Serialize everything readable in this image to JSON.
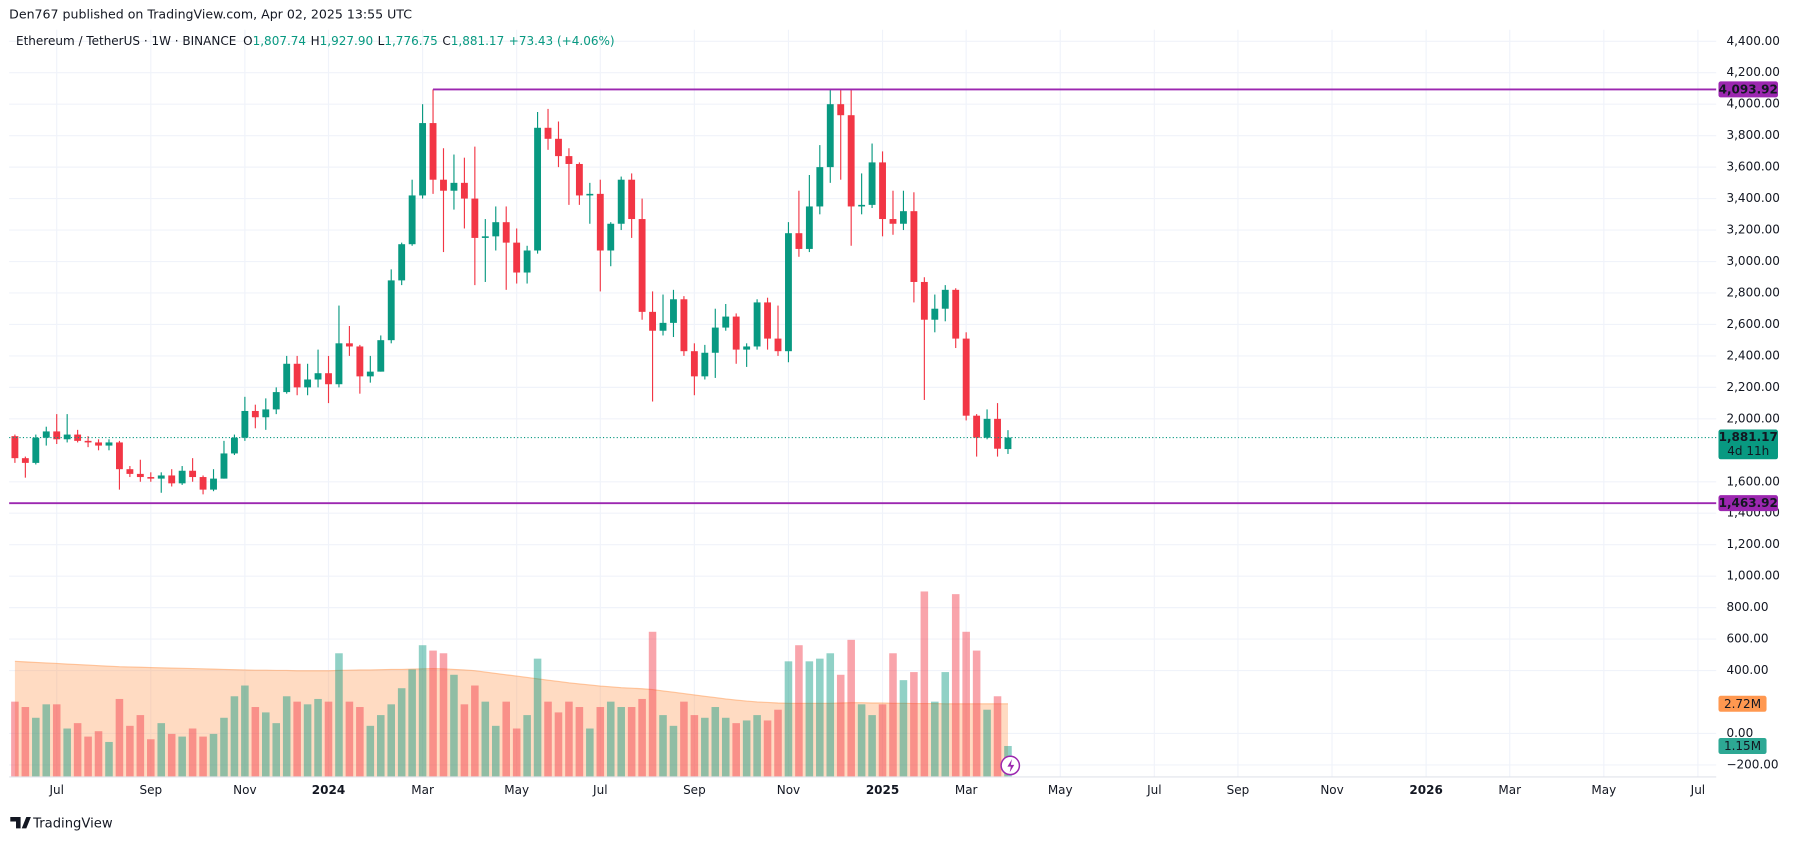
{
  "header": {
    "published": "Den767 published on TradingView.com, Apr 02, 2025 13:55 UTC",
    "brand": "TradingView"
  },
  "chart_data": {
    "type": "candlestick",
    "legend": {
      "symbol": "Ethereum / TetherUS · 1W · BINANCE",
      "items": [
        {
          "key": "O",
          "value": "1,807.74"
        },
        {
          "key": "H",
          "value": "1,927.90"
        },
        {
          "key": "L",
          "value": "1,776.75"
        },
        {
          "key": "C",
          "value": "1,881.17"
        }
      ],
      "change": "+73.43 (+4.06%)"
    },
    "colors": {
      "up": "#089981",
      "down": "#f23645",
      "level": "#9c27b0",
      "volume_ma": "#ff9850"
    },
    "open": [
      1890,
      1750,
      1720,
      1880,
      1920,
      1870,
      1900,
      1860,
      1850,
      1830,
      1850,
      1680,
      1650,
      1630,
      1620,
      1640,
      1590,
      1670,
      1630,
      1550,
      1620,
      1780,
      1880,
      2050,
      2010,
      2060,
      2170,
      2350,
      2200,
      2250,
      2290,
      2220,
      2480,
      2460,
      2270,
      2300,
      2500,
      2880,
      3110,
      3420,
      3880,
      3520,
      3450,
      3500,
      3400,
      3150,
      3160,
      3250,
      3120,
      2930,
      3070,
      3850,
      3780,
      3670,
      3620,
      3420,
      3430,
      3070,
      3240,
      3520,
      3270,
      2680,
      2560,
      2610,
      2760,
      2430,
      2270,
      2420,
      2580,
      2650,
      2440,
      2460,
      2740,
      2510,
      2430,
      3180,
      3080,
      3350,
      3600,
      4000,
      3930,
      3350,
      3360,
      3630,
      3270,
      3240,
      3320,
      2870,
      2630,
      2700,
      2820,
      2510,
      2020,
      1880,
      2000,
      1807.74
    ],
    "high": [
      1900,
      1760,
      1900,
      1950,
      2030,
      2030,
      1930,
      1890,
      1870,
      1870,
      1860,
      1700,
      1740,
      1660,
      1660,
      1680,
      1700,
      1750,
      1640,
      1680,
      1860,
      1900,
      2140,
      2090,
      2130,
      2200,
      2400,
      2400,
      2350,
      2440,
      2400,
      2720,
      2590,
      2470,
      2400,
      2530,
      2950,
      3120,
      3520,
      4000,
      4093.92,
      3720,
      3680,
      3660,
      3730,
      3270,
      3350,
      3350,
      3210,
      3100,
      3950,
      3970,
      3890,
      3720,
      3630,
      3500,
      3520,
      3250,
      3540,
      3560,
      3400,
      2810,
      2790,
      2820,
      2780,
      2480,
      2470,
      2700,
      2730,
      2670,
      2480,
      2760,
      2770,
      2720,
      3250,
      3450,
      3550,
      3740,
      4090,
      4090,
      4093.92,
      3560,
      3750,
      3700,
      3450,
      3450,
      3440,
      2900,
      2790,
      2850,
      2830,
      2550,
      2030,
      2060,
      2100,
      1927.9
    ],
    "low": [
      1720,
      1626,
      1710,
      1830,
      1840,
      1850,
      1850,
      1820,
      1800,
      1800,
      1550,
      1630,
      1600,
      1600,
      1530,
      1570,
      1580,
      1600,
      1520,
      1540,
      1620,
      1770,
      1860,
      1940,
      1930,
      2030,
      2160,
      2150,
      2150,
      2200,
      2100,
      2200,
      2400,
      2160,
      2230,
      2300,
      2480,
      2850,
      3100,
      3400,
      3430,
      3060,
      3330,
      3210,
      2850,
      2870,
      3070,
      2820,
      2860,
      2860,
      3050,
      3710,
      3600,
      3360,
      3360,
      3240,
      2810,
      2970,
      3200,
      3150,
      2630,
      2110,
      2530,
      2520,
      2400,
      2150,
      2250,
      2260,
      2560,
      2350,
      2330,
      2440,
      2440,
      2400,
      2360,
      3030,
      3060,
      3300,
      3500,
      3520,
      3100,
      3300,
      3340,
      3160,
      3170,
      3200,
      2740,
      2120,
      2550,
      2620,
      2450,
      1990,
      1760,
      1870,
      1760,
      1776.75
    ],
    "close": [
      1750,
      1720,
      1880,
      1920,
      1870,
      1900,
      1860,
      1850,
      1830,
      1850,
      1680,
      1650,
      1630,
      1620,
      1640,
      1590,
      1670,
      1630,
      1550,
      1620,
      1780,
      1880,
      2050,
      2010,
      2060,
      2170,
      2350,
      2200,
      2250,
      2290,
      2220,
      2480,
      2460,
      2270,
      2300,
      2500,
      2880,
      3110,
      3420,
      3880,
      3520,
      3450,
      3500,
      3400,
      3150,
      3160,
      3250,
      3120,
      2930,
      3070,
      3850,
      3780,
      3670,
      3620,
      3420,
      3430,
      3070,
      3240,
      3520,
      3270,
      2680,
      2560,
      2610,
      2760,
      2430,
      2270,
      2420,
      2580,
      2650,
      2440,
      2460,
      2740,
      2510,
      2430,
      3180,
      3080,
      3350,
      3600,
      4000,
      3930,
      3350,
      3360,
      3630,
      3270,
      3240,
      3320,
      2870,
      2630,
      2700,
      2820,
      2510,
      2020,
      1880,
      2000,
      1810,
      1881.17
    ],
    "volume": {
      "axis": "y2",
      "last_label": "1.15M",
      "values": [
        2.8,
        2.6,
        2.2,
        2.7,
        2.7,
        1.8,
        2.0,
        1.5,
        1.7,
        1.3,
        2.9,
        1.9,
        2.3,
        1.4,
        2.0,
        1.6,
        1.5,
        1.8,
        1.5,
        1.6,
        2.2,
        3.0,
        3.4,
        2.6,
        2.4,
        2.0,
        3.0,
        2.8,
        2.7,
        2.9,
        2.8,
        4.6,
        2.8,
        2.6,
        1.9,
        2.3,
        2.7,
        3.3,
        4.0,
        4.9,
        4.7,
        4.6,
        3.8,
        2.7,
        3.4,
        2.8,
        1.9,
        2.8,
        1.8,
        2.3,
        4.4,
        2.8,
        2.4,
        2.8,
        2.6,
        1.8,
        2.6,
        2.8,
        2.6,
        2.6,
        2.9,
        5.4,
        2.3,
        1.9,
        2.8,
        2.3,
        2.2,
        2.6,
        2.2,
        2.0,
        2.1,
        2.3,
        2.1,
        2.5,
        4.3,
        4.9,
        4.3,
        4.4,
        4.6,
        3.8,
        5.1,
        2.7,
        2.3,
        2.7,
        4.6,
        3.6,
        3.9,
        6.9,
        2.8,
        3.9,
        6.8,
        5.4,
        4.7,
        2.5,
        3.0,
        1.15
      ]
    },
    "volume_ma": {
      "axis": "y2",
      "last_label": "2.72M",
      "values": [
        4.3,
        4.28,
        4.26,
        4.24,
        4.22,
        4.2,
        4.18,
        4.16,
        4.14,
        4.12,
        4.1,
        4.09,
        4.08,
        4.07,
        4.06,
        4.05,
        4.04,
        4.03,
        4.02,
        4.01,
        4.0,
        3.99,
        3.98,
        3.97,
        3.97,
        3.96,
        3.96,
        3.95,
        3.95,
        3.95,
        3.95,
        3.96,
        3.97,
        3.98,
        3.98,
        3.99,
        4.0,
        4.0,
        4.01,
        4.02,
        4.03,
        4.02,
        4.0,
        3.98,
        3.95,
        3.9,
        3.85,
        3.8,
        3.75,
        3.7,
        3.65,
        3.6,
        3.55,
        3.5,
        3.46,
        3.42,
        3.38,
        3.35,
        3.32,
        3.3,
        3.28,
        3.25,
        3.2,
        3.15,
        3.1,
        3.05,
        3.0,
        2.95,
        2.9,
        2.86,
        2.82,
        2.79,
        2.77,
        2.75,
        2.74,
        2.74,
        2.74,
        2.74,
        2.74,
        2.75,
        2.76,
        2.76,
        2.75,
        2.75,
        2.74,
        2.74,
        2.73,
        2.73,
        2.73,
        2.72,
        2.72,
        2.72,
        2.72,
        2.72,
        2.72,
        2.72
      ]
    },
    "levels": [
      {
        "value": 4093.92,
        "label": "4,093.92",
        "x_start": 40
      },
      {
        "value": 1463.92,
        "label": "1,463.92"
      }
    ],
    "last_price": {
      "value": 1881.17,
      "label": "1,881.17",
      "countdown": "4d 11h"
    },
    "grid": true,
    "ylim": [
      -276,
      4473
    ],
    "y2lim": [
      0,
      27.8
    ],
    "yticks": [
      {
        "value": 4400,
        "label": "4,400.00"
      },
      {
        "value": 4200,
        "label": "4,200.00"
      },
      {
        "value": 4000,
        "label": "4,000.00"
      },
      {
        "value": 3800,
        "label": "3,800.00"
      },
      {
        "value": 3600,
        "label": "3,600.00"
      },
      {
        "value": 3400,
        "label": "3,400.00"
      },
      {
        "value": 3200,
        "label": "3,200.00"
      },
      {
        "value": 3000,
        "label": "3,000.00"
      },
      {
        "value": 2800,
        "label": "2,800.00"
      },
      {
        "value": 2600,
        "label": "2,600.00"
      },
      {
        "value": 2400,
        "label": "2,400.00"
      },
      {
        "value": 2200,
        "label": "2,200.00"
      },
      {
        "value": 2000,
        "label": "2,000.00"
      },
      {
        "value": 1600,
        "label": "1,600.00"
      },
      {
        "value": 1400,
        "label": "1,400.00"
      },
      {
        "value": 1200,
        "label": "1,200.00"
      },
      {
        "value": 1000,
        "label": "1,000.00"
      },
      {
        "value": 800,
        "label": "800.00"
      },
      {
        "value": 600,
        "label": "600.00"
      },
      {
        "value": 400,
        "label": "400.00"
      },
      {
        "value": 0,
        "label": "0.00"
      },
      {
        "value": -200,
        "label": "−200.00"
      }
    ],
    "xlim": [
      -0.55,
      162.75
    ],
    "xticks": [
      {
        "value": 4,
        "label": "Jul"
      },
      {
        "value": 13,
        "label": "Sep"
      },
      {
        "value": 22,
        "label": "Nov"
      },
      {
        "value": 30,
        "label": "2024"
      },
      {
        "value": 39,
        "label": "Mar"
      },
      {
        "value": 48,
        "label": "May"
      },
      {
        "value": 56,
        "label": "Jul"
      },
      {
        "value": 65,
        "label": "Sep"
      },
      {
        "value": 74,
        "label": "Nov"
      },
      {
        "value": 83,
        "label": "2025"
      },
      {
        "value": 91,
        "label": "Mar"
      },
      {
        "value": 100,
        "label": "May"
      },
      {
        "value": 109,
        "label": "Jul"
      },
      {
        "value": 117,
        "label": "Sep"
      },
      {
        "value": 126,
        "label": "Nov"
      },
      {
        "value": 135,
        "label": "2026"
      },
      {
        "value": 143,
        "label": "Mar"
      },
      {
        "value": 152,
        "label": "May"
      },
      {
        "value": 161,
        "label": "Jul"
      }
    ]
  }
}
